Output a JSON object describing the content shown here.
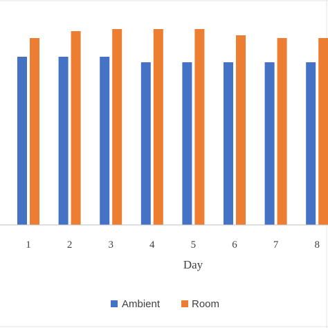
{
  "chart_data": {
    "type": "bar",
    "xlabel": "Day",
    "categories": [
      "1",
      "2",
      "3",
      "4",
      "5",
      "6",
      "7",
      "8"
    ],
    "series": [
      {
        "name": "Ambient",
        "color": "#4472c4",
        "values": [
          24.3,
          24.3,
          24.3,
          23.5,
          23.5,
          23.5,
          23.5,
          23.5
        ]
      },
      {
        "name": "Room",
        "color": "#ed7d31",
        "values": [
          27.0,
          28.0,
          28.3,
          28.3,
          28.3,
          27.4,
          27.0,
          27.0
        ]
      }
    ],
    "ylim": [
      0,
      32.5
    ],
    "grid": false,
    "legend": "bottom"
  }
}
